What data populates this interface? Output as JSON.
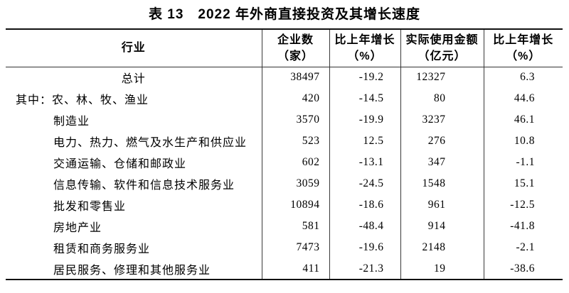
{
  "title": "表 13　2022 年外商直接投资及其增长速度",
  "table": {
    "columns": [
      {
        "label": "行业",
        "sub": ""
      },
      {
        "label": "企业数",
        "sub": "（家）"
      },
      {
        "label": "比上年增长",
        "sub": "（%）"
      },
      {
        "label": "实际使用金额",
        "sub": "（亿元）"
      },
      {
        "label": "比上年增长",
        "sub": "（%）"
      }
    ],
    "rows": [
      {
        "prefix": "",
        "industry": "总计",
        "enterprises": "38497",
        "growth1": "-19.2",
        "amount": "12327",
        "growth2": "6.3"
      },
      {
        "prefix": "其中：",
        "industry": "农、林、牧、渔业",
        "enterprises": "420",
        "growth1": "-14.5",
        "amount": "80",
        "growth2": "44.6"
      },
      {
        "prefix": "",
        "industry": "制造业",
        "enterprises": "3570",
        "growth1": "-19.9",
        "amount": "3237",
        "growth2": "46.1"
      },
      {
        "prefix": "",
        "industry": "电力、热力、燃气及水生产和供应业",
        "enterprises": "523",
        "growth1": "12.5",
        "amount": "276",
        "growth2": "10.8"
      },
      {
        "prefix": "",
        "industry": "交通运输、仓储和邮政业",
        "enterprises": "602",
        "growth1": "-13.1",
        "amount": "347",
        "growth2": "-1.1"
      },
      {
        "prefix": "",
        "industry": "信息传输、软件和信息技术服务业",
        "enterprises": "3059",
        "growth1": "-24.5",
        "amount": "1548",
        "growth2": "15.1"
      },
      {
        "prefix": "",
        "industry": "批发和零售业",
        "enterprises": "10894",
        "growth1": "-18.6",
        "amount": "961",
        "growth2": "-12.5"
      },
      {
        "prefix": "",
        "industry": "房地产业",
        "enterprises": "581",
        "growth1": "-48.4",
        "amount": "914",
        "growth2": "-41.8"
      },
      {
        "prefix": "",
        "industry": "租赁和商务服务业",
        "enterprises": "7473",
        "growth1": "-19.6",
        "amount": "2148",
        "grow2_note": "",
        "growth2": "-2.1"
      },
      {
        "prefix": "",
        "industry": "居民服务、修理和其他服务业",
        "enterprises": "411",
        "growth1": "-21.3",
        "amount": "19",
        "growth2": "-38.6"
      }
    ]
  }
}
